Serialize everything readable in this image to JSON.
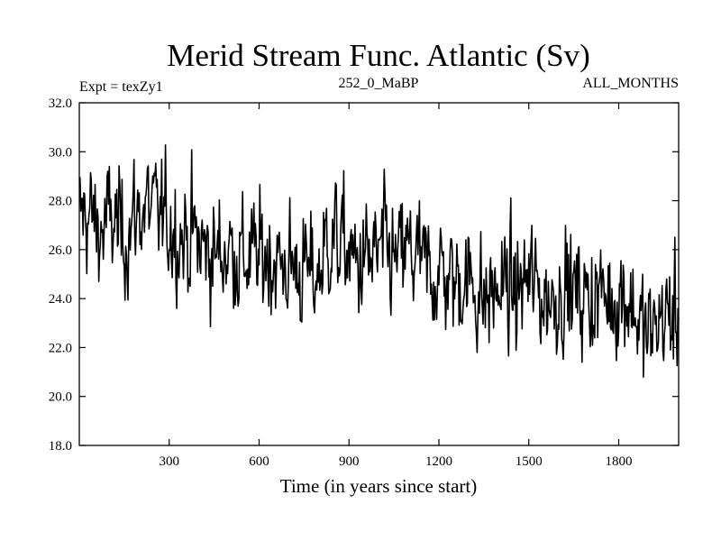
{
  "chart_data": {
    "type": "line",
    "title": "Merid Stream Func. Atlantic (Sv)",
    "subtitle_left": "Expt = texZy1",
    "subtitle_center": "252_0_MaBP",
    "subtitle_right": "ALL_MONTHS",
    "xlabel": "Time (in years since start)",
    "ylabel": "",
    "xlim": [
      0,
      2000
    ],
    "ylim": [
      18.0,
      32.0
    ],
    "xticks": [
      300,
      600,
      900,
      1200,
      1500,
      1800
    ],
    "xtick_labels": [
      "300",
      "600",
      "900",
      "1200",
      "1500",
      "1800"
    ],
    "yticks": [
      18.0,
      20.0,
      22.0,
      24.0,
      26.0,
      28.0,
      30.0,
      32.0
    ],
    "ytick_labels": [
      "18.0",
      "20.0",
      "22.0",
      "24.0",
      "26.0",
      "28.0",
      "30.0",
      "32.0"
    ],
    "series": [
      {
        "name": "Merid Stream Func. Atlantic",
        "color": "#000000",
        "x": [
          0,
          25,
          50,
          75,
          100,
          125,
          150,
          175,
          200,
          225,
          250,
          275,
          300,
          325,
          350,
          375,
          400,
          425,
          450,
          475,
          500,
          525,
          550,
          575,
          600,
          625,
          650,
          675,
          700,
          725,
          750,
          775,
          800,
          825,
          850,
          875,
          900,
          925,
          950,
          975,
          1000,
          1025,
          1050,
          1075,
          1100,
          1125,
          1150,
          1175,
          1200,
          1225,
          1250,
          1275,
          1300,
          1325,
          1350,
          1375,
          1400,
          1425,
          1450,
          1475,
          1500,
          1525,
          1550,
          1575,
          1600,
          1625,
          1650,
          1675,
          1700,
          1725,
          1750,
          1775,
          1800,
          1825,
          1850,
          1875,
          1900,
          1925,
          1950,
          1975,
          2000
        ],
        "values": [
          27.3,
          27.5,
          27.1,
          26.7,
          27.2,
          27.0,
          26.6,
          27.0,
          27.6,
          27.8,
          27.4,
          27.3,
          27.1,
          26.8,
          26.5,
          26.6,
          26.2,
          26.0,
          25.8,
          25.9,
          26.1,
          25.9,
          25.6,
          25.7,
          25.5,
          25.9,
          25.6,
          25.3,
          25.4,
          25.2,
          25.1,
          24.9,
          25.0,
          26.3,
          26.5,
          26.2,
          25.8,
          25.3,
          25.6,
          25.5,
          25.8,
          26.0,
          25.4,
          25.7,
          25.9,
          25.6,
          25.2,
          25.0,
          25.2,
          24.9,
          24.6,
          24.9,
          24.8,
          24.5,
          23.8,
          24.2,
          24.3,
          24.6,
          24.1,
          24.5,
          24.8,
          24.4,
          24.1,
          24.0,
          24.3,
          24.6,
          24.2,
          24.1,
          24.0,
          24.3,
          24.1,
          24.0,
          24.2,
          24.3,
          23.6,
          22.8,
          22.4,
          23.0,
          23.3,
          23.2,
          23.2
        ]
      }
    ],
    "noise_sigma": 1.15,
    "sample_step_years": 2.5
  }
}
